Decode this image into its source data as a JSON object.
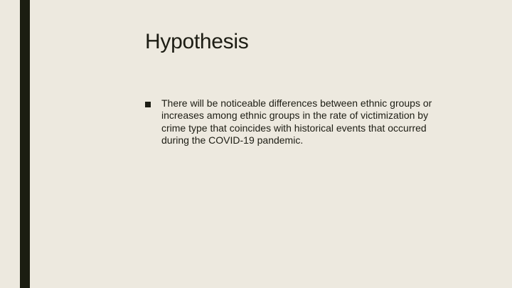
{
  "slide": {
    "title": "Hypothesis",
    "bullets": [
      {
        "text": "There will be noticeable differences between ethnic groups or increases among ethnic groups in the rate of victimization by crime type that coincides with historical events that occurred during the COVID-19 pandemic."
      }
    ]
  },
  "colors": {
    "background": "#ede9df",
    "accent_bar": "#1b1d11",
    "text": "#1d1d14"
  },
  "icons": {
    "bullet": "square-bullet-icon"
  }
}
